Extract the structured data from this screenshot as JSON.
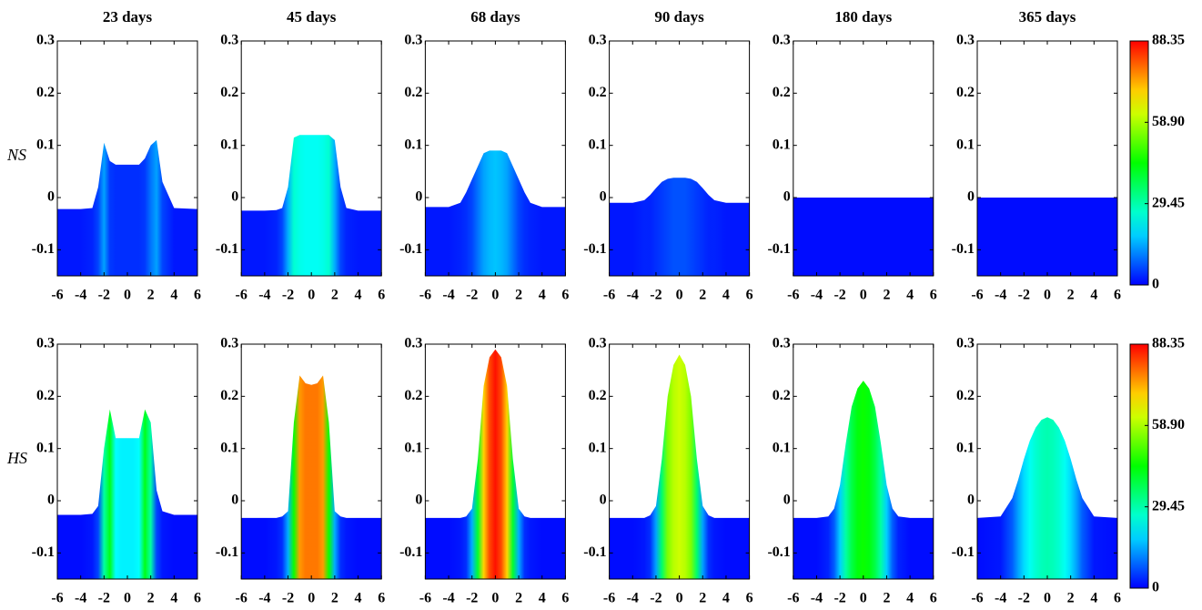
{
  "chart_data": [
    {
      "type": "area",
      "title": "23 days",
      "ylabel": "NS",
      "x": [
        -6,
        -4,
        -3,
        -2.5,
        -2,
        -1.5,
        -1,
        -0.5,
        0,
        0.5,
        1,
        1.5,
        2,
        2.5,
        3,
        4,
        6
      ],
      "values": [
        -0.022,
        -0.022,
        -0.02,
        0.02,
        0.105,
        0.07,
        0.063,
        0.063,
        0.063,
        0.063,
        0.063,
        0.075,
        0.1,
        0.11,
        0.03,
        -0.02,
        -0.022
      ],
      "intensity": [
        2,
        2,
        3,
        6,
        14,
        5,
        4,
        4,
        4,
        4,
        4,
        5,
        10,
        14,
        6,
        2,
        2
      ],
      "xlim": [
        -6,
        6
      ],
      "xticks": [
        -6,
        -4,
        -2,
        0,
        2,
        4,
        6
      ],
      "ylim": [
        -0.15,
        0.3
      ],
      "yticks": [
        -0.1,
        0,
        0.1,
        0.2,
        0.3
      ]
    },
    {
      "type": "area",
      "title": "45 days",
      "x": [
        -6,
        -4,
        -3,
        -2.5,
        -2,
        -1.5,
        -1,
        -0.5,
        0,
        0.5,
        1,
        1.5,
        2,
        2.5,
        3,
        4,
        6
      ],
      "values": [
        -0.025,
        -0.025,
        -0.024,
        -0.02,
        0.02,
        0.115,
        0.12,
        0.12,
        0.12,
        0.12,
        0.12,
        0.12,
        0.11,
        0.02,
        -0.02,
        -0.025,
        -0.025
      ],
      "intensity": [
        2,
        2,
        3,
        6,
        15,
        26,
        24,
        23,
        23,
        23,
        24,
        26,
        15,
        6,
        3,
        2,
        2
      ],
      "xlim": [
        -6,
        6
      ],
      "xticks": [
        -6,
        -4,
        -2,
        0,
        2,
        4,
        6
      ],
      "ylim": [
        -0.15,
        0.3
      ],
      "yticks": [
        -0.1,
        0,
        0.1,
        0.2,
        0.3
      ]
    },
    {
      "type": "area",
      "title": "68 days",
      "x": [
        -6,
        -4,
        -3,
        -2.5,
        -2,
        -1.5,
        -1,
        -0.5,
        0,
        0.5,
        1,
        1.5,
        2,
        2.5,
        3,
        4,
        6
      ],
      "values": [
        -0.018,
        -0.018,
        -0.01,
        0.01,
        0.035,
        0.06,
        0.085,
        0.09,
        0.09,
        0.09,
        0.085,
        0.06,
        0.035,
        0.01,
        -0.01,
        -0.018,
        -0.018
      ],
      "intensity": [
        2,
        2,
        3,
        4,
        6,
        10,
        14,
        16,
        17,
        16,
        14,
        10,
        6,
        4,
        3,
        2,
        2
      ],
      "xlim": [
        -6,
        6
      ],
      "xticks": [
        -6,
        -4,
        -2,
        0,
        2,
        4,
        6
      ],
      "ylim": [
        -0.15,
        0.3
      ],
      "yticks": [
        -0.1,
        0,
        0.1,
        0.2,
        0.3
      ]
    },
    {
      "type": "area",
      "title": "90 days",
      "x": [
        -6,
        -4,
        -3,
        -2.5,
        -2,
        -1.5,
        -1,
        -0.5,
        0,
        0.5,
        1,
        1.5,
        2,
        2.5,
        3,
        4,
        6
      ],
      "values": [
        -0.01,
        -0.01,
        -0.005,
        0.005,
        0.018,
        0.03,
        0.036,
        0.038,
        0.038,
        0.038,
        0.036,
        0.03,
        0.018,
        0.005,
        -0.005,
        -0.01,
        -0.01
      ],
      "intensity": [
        2,
        2,
        3,
        3,
        4,
        5,
        6,
        7,
        7,
        7,
        6,
        5,
        4,
        3,
        3,
        2,
        2
      ],
      "xlim": [
        -6,
        6
      ],
      "xticks": [
        -6,
        -4,
        -2,
        0,
        2,
        4,
        6
      ],
      "ylim": [
        -0.15,
        0.3
      ],
      "yticks": [
        -0.1,
        0,
        0.1,
        0.2,
        0.3
      ]
    },
    {
      "type": "area",
      "title": "180 days",
      "x": [
        -6,
        6
      ],
      "values": [
        0,
        0
      ],
      "intensity": [
        1,
        1
      ],
      "xlim": [
        -6,
        6
      ],
      "xticks": [
        -6,
        -4,
        -2,
        0,
        2,
        4,
        6
      ],
      "ylim": [
        -0.15,
        0.3
      ],
      "yticks": [
        -0.1,
        0,
        0.1,
        0.2,
        0.3
      ]
    },
    {
      "type": "area",
      "title": "365 days",
      "x": [
        -6,
        6
      ],
      "values": [
        0,
        0
      ],
      "intensity": [
        1,
        1
      ],
      "xlim": [
        -6,
        6
      ],
      "xticks": [
        -6,
        -4,
        -2,
        0,
        2,
        4,
        6
      ],
      "ylim": [
        -0.15,
        0.3
      ],
      "yticks": [
        -0.1,
        0,
        0.1,
        0.2,
        0.3
      ]
    },
    {
      "type": "area",
      "ylabel": "HS",
      "x": [
        -6,
        -4,
        -3,
        -2.5,
        -2,
        -1.5,
        -1,
        -0.5,
        0,
        0.5,
        1,
        1.5,
        2,
        2.5,
        3,
        4,
        6
      ],
      "values": [
        -0.027,
        -0.027,
        -0.025,
        -0.01,
        0.1,
        0.175,
        0.12,
        0.12,
        0.12,
        0.12,
        0.12,
        0.175,
        0.15,
        0.02,
        -0.02,
        -0.027,
        -0.027
      ],
      "intensity": [
        1,
        1,
        2,
        6,
        30,
        42,
        22,
        21,
        21,
        21,
        22,
        42,
        30,
        6,
        2,
        1,
        1
      ],
      "xlim": [
        -6,
        6
      ],
      "xticks": [
        -6,
        -4,
        -2,
        0,
        2,
        4,
        6
      ],
      "ylim": [
        -0.15,
        0.3
      ],
      "yticks": [
        -0.1,
        0,
        0.1,
        0.2,
        0.3
      ]
    },
    {
      "type": "area",
      "x": [
        -6,
        -4,
        -3,
        -2.5,
        -2,
        -1.5,
        -1,
        -0.5,
        0,
        0.5,
        1,
        1.5,
        2,
        2.5,
        3,
        4,
        6
      ],
      "values": [
        -0.033,
        -0.033,
        -0.033,
        -0.03,
        -0.02,
        0.15,
        0.24,
        0.225,
        0.222,
        0.225,
        0.24,
        0.15,
        -0.02,
        -0.03,
        -0.033,
        -0.033,
        -0.033
      ],
      "intensity": [
        1,
        1,
        2,
        4,
        15,
        45,
        75,
        78,
        78,
        78,
        75,
        45,
        15,
        4,
        2,
        1,
        1
      ],
      "xlim": [
        -6,
        6
      ],
      "xticks": [
        -6,
        -4,
        -2,
        0,
        2,
        4,
        6
      ],
      "ylim": [
        -0.15,
        0.3
      ],
      "yticks": [
        -0.1,
        0,
        0.1,
        0.2,
        0.3
      ]
    },
    {
      "type": "area",
      "x": [
        -6,
        -4,
        -3,
        -2.5,
        -2,
        -1.5,
        -1,
        -0.5,
        0,
        0.5,
        1,
        1.5,
        2,
        2.5,
        3,
        4,
        6
      ],
      "values": [
        -0.033,
        -0.033,
        -0.033,
        -0.03,
        -0.015,
        0.08,
        0.22,
        0.275,
        0.29,
        0.275,
        0.22,
        0.08,
        -0.015,
        -0.03,
        -0.033,
        -0.033,
        -0.033
      ],
      "intensity": [
        1,
        1,
        2,
        4,
        15,
        40,
        70,
        82,
        87,
        82,
        70,
        40,
        15,
        4,
        2,
        1,
        1
      ],
      "xlim": [
        -6,
        6
      ],
      "xticks": [
        -6,
        -4,
        -2,
        0,
        2,
        4,
        6
      ],
      "ylim": [
        -0.15,
        0.3
      ],
      "yticks": [
        -0.1,
        0,
        0.1,
        0.2,
        0.3
      ]
    },
    {
      "type": "area",
      "x": [
        -6,
        -4,
        -3,
        -2.5,
        -2,
        -1.5,
        -1,
        -0.5,
        0,
        0.5,
        1,
        1.5,
        2,
        2.5,
        3,
        4,
        6
      ],
      "values": [
        -0.033,
        -0.033,
        -0.033,
        -0.028,
        -0.01,
        0.08,
        0.2,
        0.26,
        0.28,
        0.26,
        0.2,
        0.08,
        -0.01,
        -0.028,
        -0.033,
        -0.033,
        -0.033
      ],
      "intensity": [
        1,
        1,
        2,
        4,
        14,
        35,
        55,
        60,
        62,
        60,
        55,
        35,
        14,
        4,
        2,
        1,
        1
      ],
      "xlim": [
        -6,
        6
      ],
      "xticks": [
        -6,
        -4,
        -2,
        0,
        2,
        4,
        6
      ],
      "ylim": [
        -0.15,
        0.3
      ],
      "yticks": [
        -0.1,
        0,
        0.1,
        0.2,
        0.3
      ]
    },
    {
      "type": "area",
      "x": [
        -6,
        -4,
        -3,
        -2.5,
        -2,
        -1.5,
        -1,
        -0.5,
        0,
        0.5,
        1,
        1.5,
        2,
        2.5,
        3,
        4,
        6
      ],
      "values": [
        -0.033,
        -0.033,
        -0.03,
        -0.015,
        0.03,
        0.11,
        0.18,
        0.215,
        0.23,
        0.215,
        0.18,
        0.11,
        0.03,
        -0.015,
        -0.03,
        -0.033,
        -0.033
      ],
      "intensity": [
        1,
        1,
        3,
        8,
        18,
        30,
        38,
        43,
        45,
        43,
        38,
        30,
        18,
        8,
        3,
        1,
        1
      ],
      "xlim": [
        -6,
        6
      ],
      "xticks": [
        -6,
        -4,
        -2,
        0,
        2,
        4,
        6
      ],
      "ylim": [
        -0.15,
        0.3
      ],
      "yticks": [
        -0.1,
        0,
        0.1,
        0.2,
        0.3
      ]
    },
    {
      "type": "area",
      "x": [
        -6,
        -4,
        -3,
        -2.5,
        -2,
        -1.5,
        -1,
        -0.5,
        0,
        0.5,
        1,
        1.5,
        2,
        2.5,
        3,
        4,
        6
      ],
      "values": [
        -0.033,
        -0.03,
        0.005,
        0.04,
        0.08,
        0.115,
        0.14,
        0.155,
        0.16,
        0.155,
        0.14,
        0.115,
        0.08,
        0.04,
        0.005,
        -0.03,
        -0.033
      ],
      "intensity": [
        1,
        2,
        8,
        14,
        19,
        23,
        26,
        28,
        29,
        28,
        26,
        23,
        19,
        14,
        8,
        2,
        1
      ],
      "xlim": [
        -6,
        6
      ],
      "xticks": [
        -6,
        -4,
        -2,
        0,
        2,
        4,
        6
      ],
      "ylim": [
        -0.15,
        0.3
      ],
      "yticks": [
        -0.1,
        0,
        0.1,
        0.2,
        0.3
      ]
    },
    {
      "type": "colorbar",
      "ylim": [
        0,
        88.35
      ],
      "yticks": [
        0,
        29.45,
        {
          "value": 58.9,
          "label": "58.90"
        },
        88.35
      ]
    },
    {
      "type": "colorbar",
      "ylim": [
        0,
        88.35
      ],
      "yticks": [
        0,
        29.45,
        {
          "value": 58.9,
          "label": "58.90"
        },
        88.35
      ]
    }
  ]
}
